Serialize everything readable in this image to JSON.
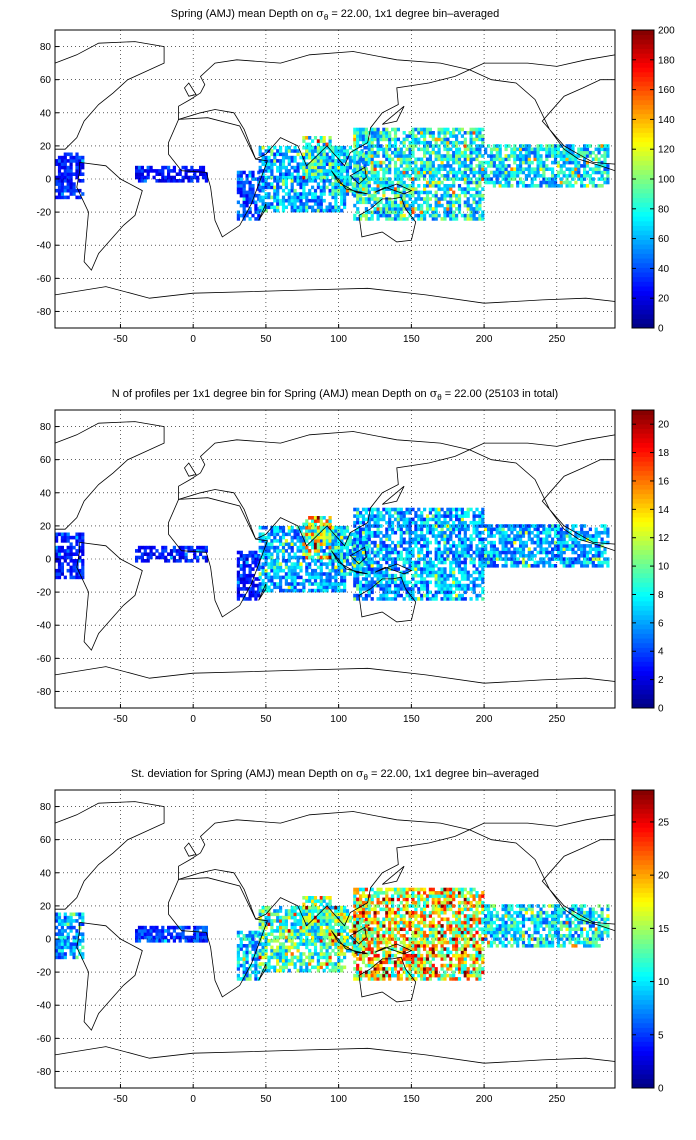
{
  "chart_data": [
    {
      "type": "heatmap",
      "title_parts": [
        "Spring (AMJ) mean Depth on ",
        "σ",
        "θ",
        " = 22.00, 1x1 degree bin–averaged"
      ],
      "xlabel": "",
      "ylabel": "",
      "xlim": [
        -95,
        290
      ],
      "ylim": [
        -90,
        90
      ],
      "xticks": [
        -50,
        0,
        50,
        100,
        150,
        200,
        250
      ],
      "yticks": [
        -80,
        -60,
        -40,
        -20,
        0,
        20,
        40,
        60,
        80
      ],
      "grid": true,
      "colormap": "jet",
      "colorbar": {
        "min": 0,
        "max": 200,
        "ticks": [
          0,
          20,
          40,
          60,
          80,
          100,
          120,
          140,
          160,
          180,
          200
        ]
      },
      "regions": [
        {
          "lon": [
            -95,
            -75
          ],
          "lat": [
            -12,
            16
          ],
          "value": 30
        },
        {
          "lon": [
            -40,
            10
          ],
          "lat": [
            -2,
            7
          ],
          "value": 25
        },
        {
          "lon": [
            30,
            45
          ],
          "lat": [
            -25,
            5
          ],
          "value": 40
        },
        {
          "lon": [
            45,
            105
          ],
          "lat": [
            -20,
            20
          ],
          "value": 55
        },
        {
          "lon": [
            75,
            95
          ],
          "lat": [
            0,
            25
          ],
          "value": 85
        },
        {
          "lon": [
            95,
            120
          ],
          "lat": [
            -10,
            20
          ],
          "value": 70
        },
        {
          "lon": [
            110,
            200
          ],
          "lat": [
            -25,
            30
          ],
          "value": 75
        },
        {
          "lon": [
            200,
            285
          ],
          "lat": [
            -5,
            20
          ],
          "value": 70
        }
      ]
    },
    {
      "type": "heatmap",
      "title_parts": [
        "N of profiles per 1x1 degree bin for Spring (AMJ) mean Depth on ",
        "σ",
        "θ",
        " = 22.00 (25103 in total)"
      ],
      "xlabel": "",
      "ylabel": "",
      "xlim": [
        -95,
        290
      ],
      "ylim": [
        -90,
        90
      ],
      "xticks": [
        -50,
        0,
        50,
        100,
        150,
        200,
        250
      ],
      "yticks": [
        -80,
        -60,
        -40,
        -20,
        0,
        20,
        40,
        60,
        80
      ],
      "grid": true,
      "colormap": "jet",
      "colorbar": {
        "min": 0,
        "max": 21,
        "ticks": [
          0,
          2,
          4,
          6,
          8,
          10,
          12,
          14,
          16,
          18,
          20
        ]
      },
      "regions": [
        {
          "lon": [
            -95,
            -75
          ],
          "lat": [
            -12,
            16
          ],
          "value": 3
        },
        {
          "lon": [
            -40,
            10
          ],
          "lat": [
            -2,
            7
          ],
          "value": 3
        },
        {
          "lon": [
            30,
            45
          ],
          "lat": [
            -25,
            5
          ],
          "value": 3
        },
        {
          "lon": [
            45,
            105
          ],
          "lat": [
            -20,
            20
          ],
          "value": 6
        },
        {
          "lon": [
            75,
            95
          ],
          "lat": [
            0,
            25
          ],
          "value": 12
        },
        {
          "lon": [
            95,
            120
          ],
          "lat": [
            -10,
            20
          ],
          "value": 7
        },
        {
          "lon": [
            110,
            200
          ],
          "lat": [
            -25,
            30
          ],
          "value": 6
        },
        {
          "lon": [
            200,
            285
          ],
          "lat": [
            -5,
            20
          ],
          "value": 6
        }
      ]
    },
    {
      "type": "heatmap",
      "title_parts": [
        "St. deviation for Spring (AMJ) mean Depth on ",
        "σ",
        "θ",
        " = 22.00, 1x1 degree bin–averaged"
      ],
      "xlabel": "",
      "ylabel": "",
      "xlim": [
        -95,
        290
      ],
      "ylim": [
        -90,
        90
      ],
      "xticks": [
        -50,
        0,
        50,
        100,
        150,
        200,
        250
      ],
      "yticks": [
        -80,
        -60,
        -40,
        -20,
        0,
        20,
        40,
        60,
        80
      ],
      "grid": true,
      "colormap": "jet",
      "colorbar": {
        "min": 0,
        "max": 28,
        "ticks": [
          0,
          5,
          10,
          15,
          20,
          25
        ]
      },
      "regions": [
        {
          "lon": [
            -95,
            -75
          ],
          "lat": [
            -12,
            16
          ],
          "value": 8
        },
        {
          "lon": [
            -40,
            10
          ],
          "lat": [
            -2,
            7
          ],
          "value": 5
        },
        {
          "lon": [
            30,
            45
          ],
          "lat": [
            -25,
            5
          ],
          "value": 9
        },
        {
          "lon": [
            45,
            105
          ],
          "lat": [
            -20,
            20
          ],
          "value": 12
        },
        {
          "lon": [
            75,
            95
          ],
          "lat": [
            0,
            25
          ],
          "value": 13
        },
        {
          "lon": [
            95,
            120
          ],
          "lat": [
            -10,
            20
          ],
          "value": 14
        },
        {
          "lon": [
            110,
            200
          ],
          "lat": [
            -25,
            30
          ],
          "value": 17
        },
        {
          "lon": [
            200,
            285
          ],
          "lat": [
            -5,
            20
          ],
          "value": 10
        }
      ]
    }
  ]
}
